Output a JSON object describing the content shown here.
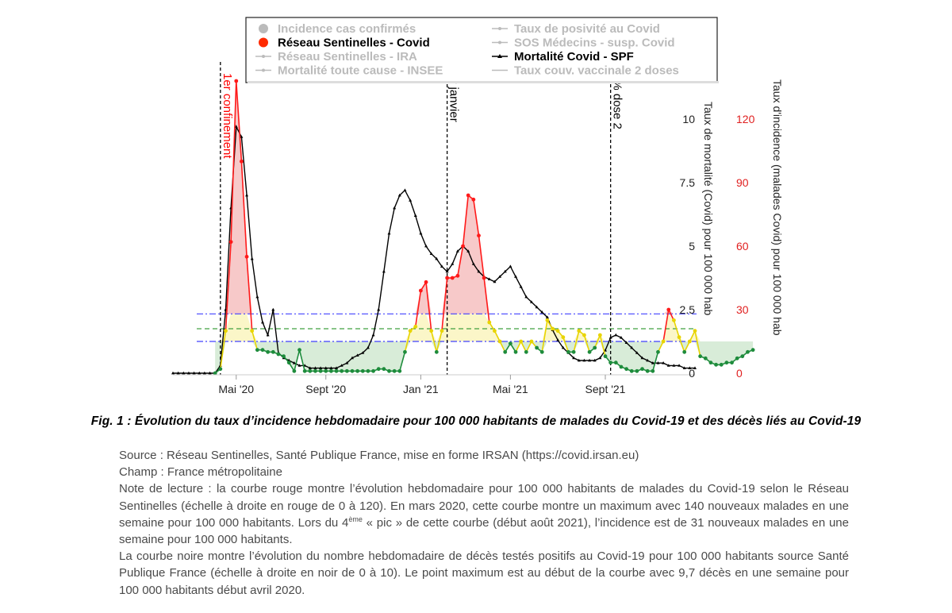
{
  "chart_data": {
    "type": "line",
    "x_ticks": [
      "Mai '20",
      "Sept '20",
      "Jan '21",
      "Mai '21",
      "Sept '21"
    ],
    "y_left": {
      "label": "Taux de mortalité (Covid) pour 100 000 hab",
      "ticks": [
        "0",
        "2.5",
        "5",
        "7.5",
        "10"
      ],
      "range": [
        0,
        10
      ]
    },
    "y_right": {
      "label": "Taux d'incidence (malades Covid) pour 100 000 hab",
      "ticks": [
        "0",
        "30",
        "60",
        "90",
        "120"
      ],
      "range": [
        0,
        120
      ]
    },
    "legend": {
      "items": [
        {
          "text": "Incidence cas confirmés",
          "active": false,
          "color": "#bbbbbb",
          "marker": "big-dot"
        },
        {
          "text": "Taux de posivité au Covid",
          "active": false,
          "color": "#bbbbbb",
          "marker": "line-dot"
        },
        {
          "text": "Réseau Sentinelles - Covid",
          "active": true,
          "color": "#ff2a00",
          "marker": "big-dot"
        },
        {
          "text": "SOS Médecins - susp. Covid",
          "active": false,
          "color": "#bbbbbb",
          "marker": "line-dot"
        },
        {
          "text": "Réseau Sentinelles - IRA",
          "active": false,
          "color": "#bbbbbb",
          "marker": "line-dot"
        },
        {
          "text": "Mortalité Covid - SPF",
          "active": true,
          "color": "#000000",
          "marker": "line-tri"
        },
        {
          "text": "Mortalité toute cause - INSEE",
          "active": false,
          "color": "#bbbbbb",
          "marker": "line-dot"
        },
        {
          "text": "Taux couv. vaccinale 2 doses",
          "active": false,
          "color": "#bbbbbb",
          "marker": "line"
        }
      ]
    },
    "vlines": [
      {
        "label": "1er confinement",
        "color": "#ff0000",
        "week": 9
      },
      {
        "label": "er janvier",
        "color": "#000000",
        "week": 52
      },
      {
        "label": "0% dose 2",
        "color": "#000000",
        "week": 83
      }
    ],
    "thresholds": [
      {
        "incidence": 28,
        "style": "dashdot",
        "color": "#4040ff"
      },
      {
        "incidence": 21,
        "style": "dash",
        "color": "#40a040"
      },
      {
        "incidence": 15,
        "style": "dashdot",
        "color": "#4040ff"
      }
    ],
    "zones": {
      "red": "#f7c9c9",
      "yellow": "#fbf6c8",
      "green": "#d8ecd8"
    },
    "x_start_week": 0,
    "x_end_week": 99,
    "tick_weeks": [
      12,
      29,
      47,
      64,
      82
    ],
    "series": [
      {
        "name": "Réseau Sentinelles - Covid",
        "axis": "right",
        "start_week": 8,
        "values": [
          0,
          2,
          20,
          62,
          138,
          100,
          55,
          20,
          11,
          11,
          10,
          10,
          9,
          8,
          5,
          1,
          11,
          1,
          1,
          1,
          1,
          1,
          1,
          1,
          1,
          1,
          1,
          1,
          1,
          1,
          1,
          2,
          2,
          1,
          1,
          1,
          10,
          20,
          22,
          39,
          43,
          20,
          10,
          20,
          45,
          45,
          46,
          60,
          84,
          82,
          65,
          45,
          24,
          20,
          15,
          10,
          14,
          10,
          15,
          10,
          15,
          12,
          10,
          25,
          21,
          20,
          17,
          10,
          10,
          20,
          18,
          10,
          12,
          18,
          8,
          5,
          5,
          3,
          2,
          1,
          1,
          2,
          1,
          1,
          10,
          15,
          30,
          25,
          17,
          10,
          15,
          20,
          8,
          7,
          5,
          4,
          4,
          5,
          5,
          7,
          8,
          10,
          11
        ]
      },
      {
        "name": "Mortalité Covid - SPF",
        "axis": "left",
        "start_week": 0,
        "values": [
          0,
          0,
          0,
          0,
          0,
          0,
          0,
          0,
          0,
          0.3,
          2.5,
          6.5,
          9.7,
          9.3,
          7.0,
          4.5,
          3.0,
          2.0,
          1.5,
          2.5,
          0.8,
          0.6,
          0.5,
          0.4,
          0.3,
          0.3,
          0.2,
          0.2,
          0.2,
          0.2,
          0.2,
          0.2,
          0.3,
          0.4,
          0.6,
          0.7,
          0.8,
          1.0,
          1.5,
          2.5,
          4.0,
          5.5,
          6.5,
          7.0,
          7.2,
          6.8,
          6.2,
          5.5,
          5.0,
          4.7,
          4.5,
          4.2,
          4.0,
          4.3,
          4.8,
          5.0,
          4.8,
          4.3,
          4.0,
          3.8,
          3.7,
          3.6,
          3.8,
          4.0,
          4.2,
          3.8,
          3.4,
          3.0,
          2.8,
          2.6,
          2.4,
          2.2,
          1.7,
          1.3,
          1.0,
          0.8,
          0.6,
          0.5,
          0.5,
          0.5,
          0.5,
          0.6,
          0.9,
          1.4,
          1.5,
          1.4,
          1.2,
          1.0,
          0.8,
          0.6,
          0.5,
          0.4,
          0.4,
          0.4,
          0.3,
          0.3,
          0.3,
          0.2,
          0.2,
          0.2
        ]
      }
    ]
  },
  "caption": "Fig. 1 : Évolution du taux d’incidence hebdomadaire pour 100 000 habitants de malades du Covid-19 et des décès liés au Covid-19",
  "notes": {
    "source": "Source : Réseau Sentinelles, Santé Publique France, mise en forme IRSAN (https://covid.irsan.eu)",
    "champ": "Champ : France métropolitaine",
    "lecture_a": "Note de lecture : la courbe rouge montre l’évolution hebdomadaire pour 100 000 habitants de malades du Covid-19 selon le Réseau Sentinelles (échelle à droite en rouge de 0 à 120). En mars 2020, cette courbe montre un maximum avec 140 nouveaux malades en une semaine pour 100 000 habitants. Lors du 4",
    "lecture_sup": "ème",
    "lecture_b": " « pic » de cette courbe (début août 2021), l’incidence est de 31 nouveaux malades en une semaine pour 100 000 habitants.",
    "noire": "La courbe noire montre l’évolution du nombre hebdomadaire de décès testés positifs au Covid-19 pour 100 000 habitants source Santé Publique France (échelle à droite en noir de 0 à 10). Le point maximum est au début de la courbe avec 9,7 décès en une semaine pour 100 000 habitants début avril 2020."
  }
}
